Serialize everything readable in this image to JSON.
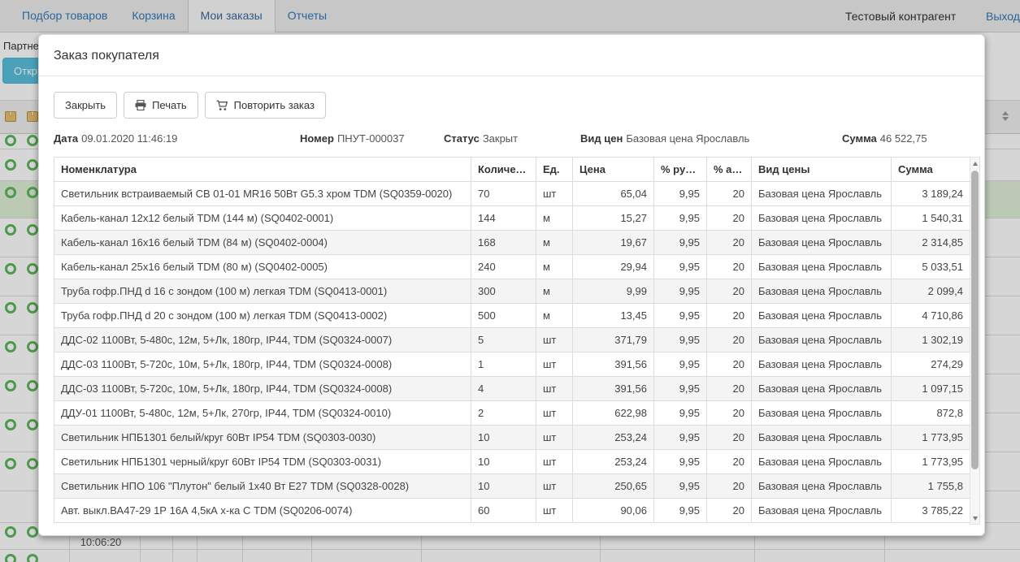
{
  "nav": {
    "tabs": [
      {
        "label": "Подбор товаров",
        "active": false
      },
      {
        "label": "Корзина",
        "active": false
      },
      {
        "label": "Мои заказы",
        "active": true
      },
      {
        "label": "Отчеты",
        "active": false
      }
    ],
    "account_name": "Тестовый контрагент",
    "logout_label": "Выход"
  },
  "background_page": {
    "partner_label": "Партнер",
    "open_button_label": "Открыть",
    "time_cell": "10:06:20"
  },
  "modal": {
    "title": "Заказ покупателя",
    "toolbar": {
      "close_label": "Закрыть",
      "print_label": "Печать",
      "repeat_label": "Повторить заказ"
    },
    "info": [
      {
        "label": "Дата",
        "value": "09.01.2020 11:46:19"
      },
      {
        "label": "Номер",
        "value": "ПНУТ-000037"
      },
      {
        "label": "Статус",
        "value": "Закрыт"
      },
      {
        "label": "Вид цен",
        "value": "Базовая цена Ярославль"
      },
      {
        "label": "Сумма",
        "value": "46 522,75"
      }
    ],
    "table": {
      "headers": [
        "Номенклатура",
        "Количество",
        "Ед.",
        "Цена",
        "% ручн.",
        "% авт.",
        "Вид цены",
        "Сумма"
      ],
      "rows": [
        [
          "Светильник встраиваемый СВ 01-01 MR16 50Вт G5.3 хром TDM (SQ0359-0020)",
          "70",
          "шт",
          "65,04",
          "9,95",
          "20",
          "Базовая цена Ярославль",
          "3 189,24"
        ],
        [
          "Кабель-канал 12х12 белый TDM (144 м) (SQ0402-0001)",
          "144",
          "м",
          "15,27",
          "9,95",
          "20",
          "Базовая цена Ярославль",
          "1 540,31"
        ],
        [
          "Кабель-канал 16х16 белый TDM (84 м) (SQ0402-0004)",
          "168",
          "м",
          "19,67",
          "9,95",
          "20",
          "Базовая цена Ярославль",
          "2 314,85"
        ],
        [
          "Кабель-канал 25х16 белый TDM (80 м) (SQ0402-0005)",
          "240",
          "м",
          "29,94",
          "9,95",
          "20",
          "Базовая цена Ярославль",
          "5 033,51"
        ],
        [
          "Труба гофр.ПНД d 16 с зондом (100 м) легкая TDM (SQ0413-0001)",
          "300",
          "м",
          "9,99",
          "9,95",
          "20",
          "Базовая цена Ярославль",
          "2 099,4"
        ],
        [
          "Труба гофр.ПНД d 20 с зондом (100 м) легкая TDM (SQ0413-0002)",
          "500",
          "м",
          "13,45",
          "9,95",
          "20",
          "Базовая цена Ярославль",
          "4 710,86"
        ],
        [
          "ДДС-02 1100Вт, 5-480с, 12м, 5+Лк, 180гр, IP44, TDM (SQ0324-0007)",
          "5",
          "шт",
          "371,79",
          "9,95",
          "20",
          "Базовая цена Ярославль",
          "1 302,19"
        ],
        [
          "ДДС-03 1100Вт, 5-720с, 10м, 5+Лк, 180гр, IP44, TDM (SQ0324-0008)",
          "1",
          "шт",
          "391,56",
          "9,95",
          "20",
          "Базовая цена Ярославль",
          "274,29"
        ],
        [
          "ДДС-03 1100Вт, 5-720с, 10м, 5+Лк, 180гр, IP44, TDM (SQ0324-0008)",
          "4",
          "шт",
          "391,56",
          "9,95",
          "20",
          "Базовая цена Ярославль",
          "1 097,15"
        ],
        [
          "ДДУ-01 1100Вт, 5-480с, 12м, 5+Лк, 270гр, IP44, TDM (SQ0324-0010)",
          "2",
          "шт",
          "622,98",
          "9,95",
          "20",
          "Базовая цена Ярославль",
          "872,8"
        ],
        [
          "Светильник НПБ1301 белый/круг 60Вт IP54 TDM (SQ0303-0030)",
          "10",
          "шт",
          "253,24",
          "9,95",
          "20",
          "Базовая цена Ярославль",
          "1 773,95"
        ],
        [
          "Светильник НПБ1301 черный/круг 60Вт IP54 TDM (SQ0303-0031)",
          "10",
          "шт",
          "253,24",
          "9,95",
          "20",
          "Базовая цена Ярославль",
          "1 773,95"
        ],
        [
          "Светильник НПО 106 \"Плутон\" белый 1х40 Вт Е27 TDM (SQ0328-0028)",
          "10",
          "шт",
          "250,65",
          "9,95",
          "20",
          "Базовая цена Ярославль",
          "1 755,8"
        ],
        [
          "Авт. выкл.ВА47-29 1Р 16А 4,5кА х-ка С TDM (SQ0206-0074)",
          "60",
          "шт",
          "90,06",
          "9,95",
          "20",
          "Базовая цена Ярославль",
          "3 785,22"
        ]
      ]
    }
  },
  "colors": {
    "accent_blue": "#337ab7",
    "info_button": "#5bc0de",
    "success_green": "#5cb85c",
    "selected_row_green": "#dff0d8"
  }
}
